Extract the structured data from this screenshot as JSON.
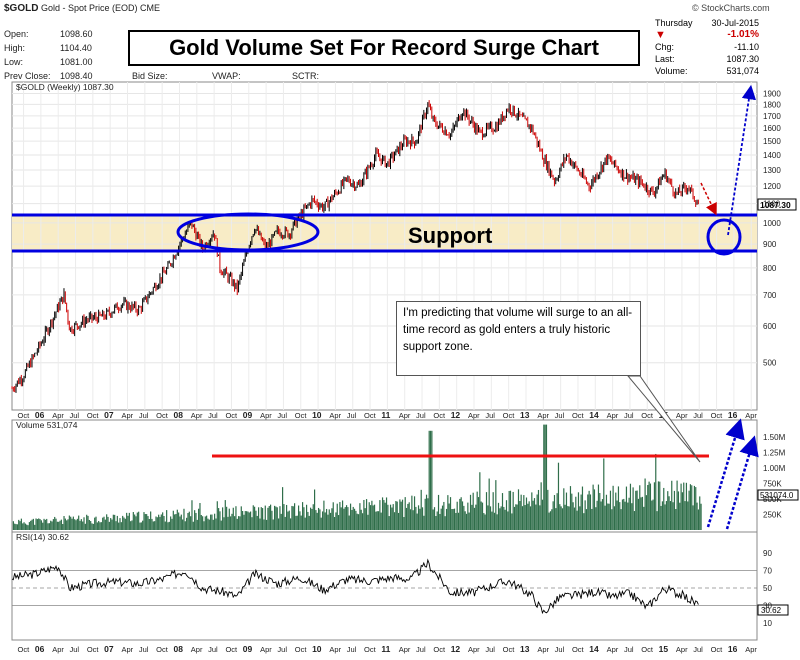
{
  "header": {
    "symbol": "$GOLD",
    "name": "Gold - Spot Price (EOD)",
    "exchange": "CME",
    "source": "© StockCharts.com",
    "day": "Thursday",
    "date": "30-Jul-2015",
    "open_label": "Open:",
    "open_value": "1098.60",
    "high_label": "High:",
    "high_value": "1104.40",
    "low_label": "Low:",
    "low_value": "1081.00",
    "prev_label": "Prev Close:",
    "prev_value": "1098.40",
    "bid_label": "Bid Size:",
    "vwap_label": "VWAP:",
    "sctr_label": "SCTR:",
    "pct_change": "-1.01%",
    "chg_label": "Chg:",
    "chg_value": "-11.10",
    "last_label": "Last:",
    "last_value": "1087.30",
    "volume_label": "Volume:",
    "volume_value": "531,074"
  },
  "title": "Gold Volume Set For Record Surge Chart",
  "annotation_support": "Support",
  "callout_text": "I'm predicting that volume will surge to an all-time record as gold enters a truly historic support zone.",
  "colors": {
    "up": "#000000",
    "down": "#cc0000",
    "support_line": "#0000e0",
    "volume_bar": "#2f6e4a",
    "record_line": "#ee1111",
    "arrow": "#0000cc",
    "highlight": "#f8ecc6"
  },
  "chart_data": [
    {
      "type": "line",
      "label": "$GOLD (Weekly) 1087.30",
      "scale": "log",
      "ylim": [
        400,
        1950
      ],
      "y_ticks": [
        "1900",
        "1800",
        "1700",
        "1600",
        "1500",
        "1400",
        "1300",
        "1200",
        "1100",
        "1000",
        "900",
        "800",
        "700",
        "600",
        "500"
      ],
      "last_value_tag": "1087.30",
      "x_tick_labels": [
        "Oct",
        "06",
        "Apr",
        "Jul",
        "Oct",
        "07",
        "Apr",
        "Jul",
        "Oct",
        "08",
        "Apr",
        "Jul",
        "Oct",
        "09",
        "Apr",
        "Jul",
        "Oct",
        "10",
        "Apr",
        "Jul",
        "Oct",
        "11",
        "Apr",
        "Jul",
        "Oct",
        "12",
        "Apr",
        "Jul",
        "Oct",
        "13",
        "Apr",
        "Jul",
        "Oct",
        "14",
        "Apr",
        "Jul",
        "Oct",
        "15",
        "Apr",
        "Jul",
        "Oct",
        "16",
        "Apr"
      ],
      "support_band": [
        870,
        1040
      ],
      "series": [
        {
          "x": [
            "2005-08",
            "2005-10",
            "2006-01",
            "2006-05",
            "2006-06",
            "2006-09",
            "2006-12",
            "2007-03",
            "2007-06",
            "2007-09",
            "2007-11",
            "2008-01",
            "2008-03",
            "2008-05",
            "2008-07",
            "2008-08",
            "2008-10",
            "2008-11",
            "2009-01",
            "2009-02",
            "2009-04",
            "2009-06",
            "2009-08",
            "2009-09",
            "2009-12",
            "2010-02",
            "2010-06",
            "2010-08",
            "2010-11",
            "2011-01",
            "2011-04",
            "2011-06",
            "2011-08",
            "2011-09",
            "2011-12",
            "2012-02",
            "2012-05",
            "2012-08",
            "2012-10",
            "2013-02",
            "2013-04",
            "2013-06",
            "2013-08",
            "2013-12",
            "2014-03",
            "2014-06",
            "2014-09",
            "2014-11",
            "2015-01",
            "2015-03",
            "2015-05",
            "2015-07"
          ],
          "values": [
            440,
            470,
            550,
            700,
            590,
            620,
            630,
            670,
            650,
            740,
            800,
            900,
            1000,
            880,
            960,
            800,
            750,
            720,
            900,
            980,
            880,
            960,
            950,
            1000,
            1120,
            1080,
            1240,
            1200,
            1400,
            1340,
            1500,
            1500,
            1800,
            1650,
            1550,
            1750,
            1560,
            1620,
            1780,
            1600,
            1380,
            1230,
            1400,
            1200,
            1380,
            1270,
            1220,
            1160,
            1280,
            1150,
            1200,
            1087
          ]
        }
      ]
    },
    {
      "type": "bar",
      "label": "Volume 531,074",
      "y_ticks": [
        "1.50M",
        "1.25M",
        "1.00M",
        "750K",
        "500K",
        "250K"
      ],
      "last_value_tag": "531074.0",
      "record_level": 1150000,
      "series": [
        {
          "name": "Volume",
          "values": []
        }
      ]
    },
    {
      "type": "line",
      "label": "RSI(14) 30.62",
      "ylim": [
        0,
        100
      ],
      "y_ticks": [
        "90",
        "70",
        "50",
        "30",
        "10"
      ],
      "last_value_tag": "30.62",
      "levels": [
        70,
        50,
        30
      ],
      "series": [
        {
          "x": [
            "2005-08",
            "2005-12",
            "2006-04",
            "2006-06",
            "2006-10",
            "2007-02",
            "2007-06",
            "2007-10",
            "2008-02",
            "2008-05",
            "2008-09",
            "2008-11",
            "2009-02",
            "2009-06",
            "2009-10",
            "2010-02",
            "2010-06",
            "2010-10",
            "2011-02",
            "2011-05",
            "2011-08",
            "2011-12",
            "2012-04",
            "2012-08",
            "2012-10",
            "2013-02",
            "2013-04",
            "2013-07",
            "2013-10",
            "2014-01",
            "2014-04",
            "2014-07",
            "2014-10",
            "2015-01",
            "2015-04",
            "2015-07"
          ],
          "values": [
            62,
            66,
            75,
            50,
            55,
            57,
            55,
            60,
            70,
            50,
            45,
            40,
            66,
            55,
            62,
            48,
            60,
            58,
            62,
            60,
            78,
            45,
            45,
            55,
            58,
            42,
            22,
            40,
            42,
            46,
            40,
            44,
            28,
            50,
            42,
            30.62
          ]
        }
      ]
    }
  ]
}
